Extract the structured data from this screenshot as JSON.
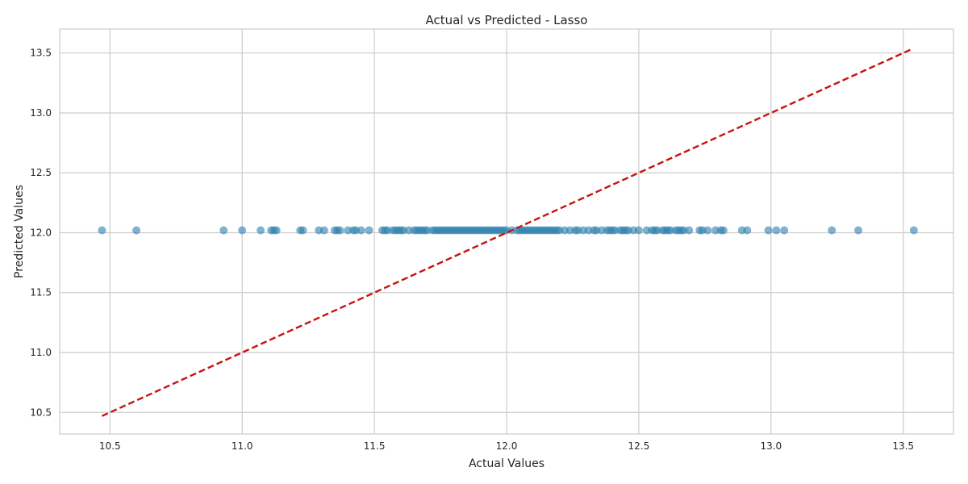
{
  "chart_data": {
    "type": "scatter",
    "title": "Actual vs Predicted - Lasso",
    "xlabel": "Actual Values",
    "ylabel": "Predicted Values",
    "xlim": [
      10.31,
      13.69
    ],
    "ylim": [
      10.32,
      13.7
    ],
    "xticks": [
      10.5,
      11.0,
      11.5,
      12.0,
      12.5,
      13.0,
      13.5
    ],
    "xtick_labels": [
      "10.5",
      "11.0",
      "11.5",
      "12.0",
      "12.5",
      "13.0",
      "13.5"
    ],
    "yticks": [
      10.5,
      11.0,
      11.5,
      12.0,
      12.5,
      13.0,
      13.5
    ],
    "ytick_labels": [
      "10.5",
      "11.0",
      "11.5",
      "12.0",
      "12.5",
      "13.0",
      "13.5"
    ],
    "grid": true,
    "reference_line": {
      "x": [
        10.47,
        13.53
      ],
      "y": [
        10.47,
        13.53
      ],
      "style": "dashed"
    },
    "colors": {
      "points": "#2a7fae",
      "reference_line": "#c8120e",
      "grid": "#cccccc"
    },
    "series": [
      {
        "y_constant": 12.02,
        "x": [
          10.47,
          10.6,
          10.93,
          11.0,
          11.07,
          11.11,
          11.12,
          11.13,
          11.22,
          11.23,
          11.29,
          11.31,
          11.35,
          11.36,
          11.37,
          11.4,
          11.42,
          11.43,
          11.45,
          11.48,
          11.53,
          11.54,
          11.55,
          11.57,
          11.58,
          11.59,
          11.6,
          11.61,
          11.63,
          11.65,
          11.66,
          11.67,
          11.68,
          11.69,
          11.7,
          11.72,
          11.73,
          11.74,
          11.75,
          11.76,
          11.77,
          11.78,
          11.79,
          11.8,
          11.81,
          11.82,
          11.83,
          11.84,
          11.85,
          11.86,
          11.87,
          11.88,
          11.89,
          11.9,
          11.91,
          11.92,
          11.93,
          11.94,
          11.95,
          11.96,
          11.97,
          11.98,
          11.99,
          12.0,
          12.02,
          12.04,
          12.05,
          12.06,
          12.07,
          12.08,
          12.09,
          12.1,
          12.11,
          12.12,
          12.13,
          12.14,
          12.15,
          12.16,
          12.17,
          12.18,
          12.19,
          12.2,
          12.22,
          12.24,
          12.26,
          12.27,
          12.29,
          12.31,
          12.33,
          12.34,
          12.36,
          12.38,
          12.39,
          12.4,
          12.41,
          12.43,
          12.44,
          12.45,
          12.46,
          12.48,
          12.5,
          12.53,
          12.55,
          12.56,
          12.57,
          12.59,
          12.6,
          12.61,
          12.62,
          12.64,
          12.65,
          12.66,
          12.67,
          12.69,
          12.73,
          12.74,
          12.76,
          12.79,
          12.81,
          12.82,
          12.89,
          12.91,
          12.99,
          13.02,
          13.05,
          13.23,
          13.33,
          13.54
        ]
      }
    ]
  }
}
